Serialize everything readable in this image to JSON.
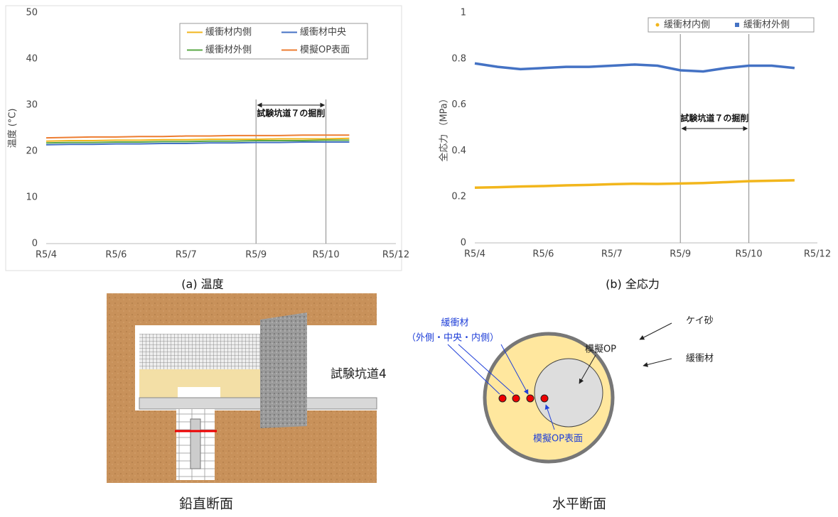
{
  "chart_data": [
    {
      "type": "line",
      "y_label": "温度 (°C)",
      "categories": [
        "R5/4",
        null,
        null,
        "R5/6",
        null,
        null,
        "R5/7",
        null,
        null,
        "R5/9",
        null,
        null,
        "R5/10",
        null,
        null,
        "R5/12"
      ],
      "series": [
        {
          "name": "緩衝材内側",
          "color": "#f2b61c",
          "values": [
            22.2,
            22.3,
            22.3,
            22.4,
            22.4,
            22.5,
            22.5,
            22.6,
            22.6,
            22.6,
            22.7,
            22.7,
            22.7,
            22.8,
            null,
            null
          ]
        },
        {
          "name": "緩衝材中央",
          "color": "#4472c4",
          "values": [
            21.4,
            21.5,
            21.5,
            21.6,
            21.6,
            21.7,
            21.7,
            21.8,
            21.8,
            21.9,
            21.9,
            22.0,
            22.0,
            22.0,
            null,
            null
          ]
        },
        {
          "name": "緩衝材外側",
          "color": "#5aa845",
          "values": [
            21.8,
            21.9,
            21.9,
            22.0,
            22.0,
            22.1,
            22.1,
            22.2,
            22.2,
            22.3,
            22.3,
            22.3,
            22.4,
            22.4,
            null,
            null
          ]
        },
        {
          "name": "模擬OP表面",
          "color": "#ed7d31",
          "values": [
            22.9,
            23.0,
            23.1,
            23.1,
            23.2,
            23.2,
            23.3,
            23.3,
            23.4,
            23.4,
            23.4,
            23.5,
            23.5,
            23.5,
            null,
            null
          ]
        }
      ],
      "ylim": [
        0,
        50
      ],
      "yticks": [
        0,
        10,
        20,
        30,
        40,
        50
      ],
      "legend": "top-right",
      "annotation": {
        "text": "試験坑道７の掘削",
        "from": "R5/9",
        "to": "R5/10"
      }
    },
    {
      "type": "line",
      "y_label": "全応力 （MPa）",
      "categories": [
        "R5/4",
        null,
        null,
        "R5/6",
        null,
        null,
        "R5/7",
        null,
        null,
        "R5/9",
        null,
        null,
        "R5/10",
        null,
        null,
        "R5/12"
      ],
      "series": [
        {
          "name": "緩衝材内側",
          "color": "#f2b61c",
          "values": [
            0.24,
            0.242,
            0.245,
            0.247,
            0.25,
            0.252,
            0.255,
            0.257,
            0.256,
            0.258,
            0.26,
            0.264,
            0.268,
            0.27,
            0.272,
            null
          ]
        },
        {
          "name": "緩衝材外側",
          "color": "#4472c4",
          "values": [
            0.78,
            0.765,
            0.755,
            0.76,
            0.765,
            0.765,
            0.77,
            0.775,
            0.77,
            0.75,
            0.745,
            0.76,
            0.77,
            0.77,
            0.76,
            null
          ]
        }
      ],
      "ylim": [
        0,
        1
      ],
      "yticks": [
        0,
        0.2,
        0.4,
        0.6,
        0.8,
        1
      ],
      "legend": "top-right",
      "annotation": {
        "text": "試験坑道７の掘削",
        "from": "R5/9",
        "to": "R5/10"
      }
    }
  ],
  "figure": {
    "captions": [
      "(a) 温度",
      "(b) 全応力"
    ],
    "vertical_section": {
      "label": "試験坑道4",
      "caption": "鉛直断面"
    },
    "horizontal_section": {
      "buffer_label": "緩衝材",
      "buffer_positions": "（外側・中央・内側）",
      "op_label": "模擬OP",
      "op_surface_label": "模擬OP表面",
      "sand_label": "ケイ砂",
      "buffer_region_label": "緩衝材",
      "caption": "水平断面"
    }
  }
}
